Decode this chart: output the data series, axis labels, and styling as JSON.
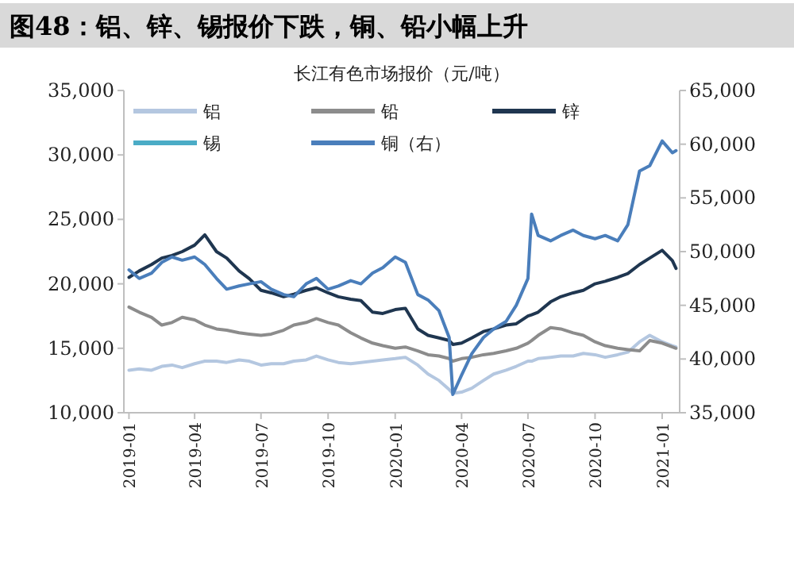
{
  "chart_data": {
    "type": "line",
    "title": "图48：铝、锌、锡报价下跌，铜、铅小幅上升",
    "subtitle": "长江有色市场报价（元/吨）",
    "x": [
      "2019-01-01",
      "2019-01-15",
      "2019-02-01",
      "2019-02-15",
      "2019-03-01",
      "2019-03-15",
      "2019-04-01",
      "2019-04-15",
      "2019-05-01",
      "2019-05-15",
      "2019-06-01",
      "2019-06-15",
      "2019-07-01",
      "2019-07-15",
      "2019-08-01",
      "2019-08-15",
      "2019-09-01",
      "2019-09-15",
      "2019-10-01",
      "2019-10-15",
      "2019-11-01",
      "2019-11-15",
      "2019-12-01",
      "2019-12-15",
      "2020-01-01",
      "2020-01-15",
      "2020-02-01",
      "2020-02-15",
      "2020-03-01",
      "2020-03-15",
      "2020-03-20",
      "2020-04-01",
      "2020-04-15",
      "2020-05-01",
      "2020-05-15",
      "2020-06-01",
      "2020-06-15",
      "2020-07-01",
      "2020-07-06",
      "2020-07-15",
      "2020-08-01",
      "2020-08-15",
      "2020-09-01",
      "2020-09-15",
      "2020-10-01",
      "2020-10-15",
      "2020-11-01",
      "2020-11-15",
      "2020-12-01",
      "2020-12-15",
      "2021-01-01",
      "2021-01-15",
      "2021-01-20"
    ],
    "series": [
      {
        "name": "铝",
        "color": "#b4c7e0",
        "values": [
          13300,
          13400,
          13300,
          13600,
          13700,
          13500,
          13800,
          14000,
          14000,
          13900,
          14100,
          14000,
          13700,
          13800,
          13800,
          14000,
          14100,
          14400,
          14100,
          13900,
          13800,
          13900,
          14000,
          14100,
          14200,
          14300,
          13700,
          13000,
          12500,
          11800,
          11500,
          11600,
          11900,
          12500,
          13000,
          13300,
          13600,
          14000,
          14000,
          14200,
          14300,
          14400,
          14400,
          14600,
          14500,
          14300,
          14500,
          14700,
          15500,
          16000,
          15500,
          15200,
          15100
        ]
      },
      {
        "name": "铅",
        "color": "#8c8c8c",
        "values": [
          18200,
          17800,
          17400,
          16800,
          17000,
          17400,
          17200,
          16800,
          16500,
          16400,
          16200,
          16100,
          16000,
          16100,
          16400,
          16800,
          17000,
          17300,
          17000,
          16800,
          16200,
          15800,
          15400,
          15200,
          15000,
          15100,
          14800,
          14500,
          14400,
          14200,
          14000,
          14200,
          14300,
          14500,
          14600,
          14800,
          15000,
          15400,
          15600,
          16000,
          16600,
          16500,
          16200,
          16000,
          15500,
          15200,
          15000,
          14900,
          14800,
          15600,
          15400,
          15100,
          15000
        ]
      },
      {
        "name": "锌",
        "color": "#1f3650",
        "values": [
          20500,
          21000,
          21500,
          22000,
          22200,
          22500,
          23000,
          23800,
          22500,
          22000,
          21000,
          20400,
          19500,
          19300,
          19000,
          19200,
          19500,
          19700,
          19300,
          19000,
          18800,
          18700,
          17800,
          17700,
          18000,
          18100,
          16500,
          16000,
          15800,
          15600,
          15300,
          15400,
          15800,
          16300,
          16500,
          16800,
          16900,
          17500,
          17600,
          17800,
          18600,
          19000,
          19300,
          19500,
          20000,
          20200,
          20500,
          20800,
          21500,
          22000,
          22600,
          21800,
          21200
        ]
      },
      {
        "name": "锡",
        "color": "#4bacc6",
        "values": [
          null,
          null,
          null,
          null,
          null,
          null,
          null,
          null,
          null,
          null,
          null,
          null,
          null,
          null,
          null,
          null,
          null,
          null,
          null,
          null,
          null,
          null,
          null,
          null,
          null,
          null,
          null,
          null,
          null,
          null,
          null,
          null,
          null,
          null,
          null,
          null,
          null,
          null,
          null,
          null,
          null,
          null,
          null,
          null,
          null,
          null,
          null,
          null,
          null,
          null,
          null,
          null,
          null
        ]
      },
      {
        "name": "铜（右）",
        "color": "#4a7ebb",
        "axis": "y2",
        "values": [
          48300,
          47500,
          48000,
          49000,
          49500,
          49200,
          49500,
          48800,
          47500,
          46500,
          46800,
          47000,
          47200,
          46500,
          46000,
          45800,
          47000,
          47500,
          46500,
          46800,
          47300,
          47000,
          48000,
          48500,
          49500,
          49000,
          46000,
          45500,
          44500,
          42000,
          36700,
          38500,
          40500,
          42000,
          42800,
          43500,
          45000,
          47500,
          53500,
          51500,
          51000,
          51500,
          52000,
          51500,
          51200,
          51500,
          51000,
          52500,
          57500,
          58000,
          60300,
          59200,
          59400
        ]
      }
    ],
    "xlim": [
      "2018-12-25",
      "2021-01-25"
    ],
    "xticks": [
      "2019-01",
      "2019-04",
      "2019-07",
      "2019-10",
      "2020-01",
      "2020-04",
      "2020-07",
      "2020-10",
      "2021-01"
    ],
    "ylim": [
      10000,
      35000
    ],
    "yticks": [
      {
        "value": 10000,
        "label": "10,000"
      },
      {
        "value": 15000,
        "label": "15,000"
      },
      {
        "value": 20000,
        "label": "20,000"
      },
      {
        "value": 25000,
        "label": "25,000"
      },
      {
        "value": 30000,
        "label": "30,000"
      },
      {
        "value": 35000,
        "label": "35,000"
      }
    ],
    "y2lim": [
      35000,
      65000
    ],
    "y2ticks": [
      {
        "value": 35000,
        "label": "35,000"
      },
      {
        "value": 40000,
        "label": "40,000"
      },
      {
        "value": 45000,
        "label": "45,000"
      },
      {
        "value": 50000,
        "label": "50,000"
      },
      {
        "value": 55000,
        "label": "55,000"
      },
      {
        "value": 60000,
        "label": "60,000"
      },
      {
        "value": 65000,
        "label": "65,000"
      }
    ],
    "legend": "top"
  }
}
